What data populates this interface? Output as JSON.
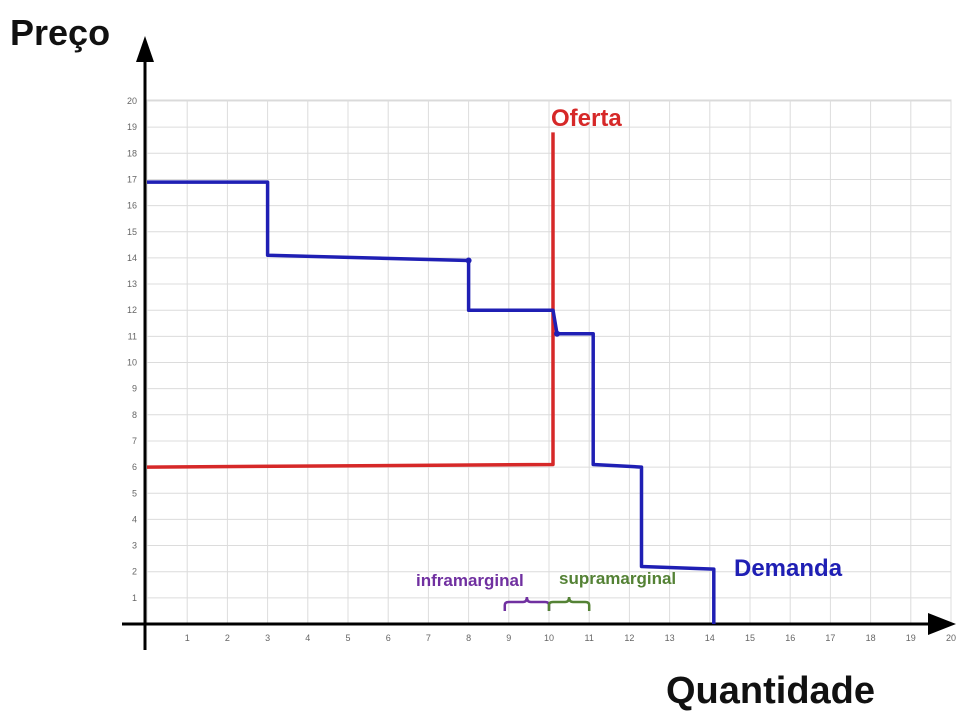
{
  "chart_data": {
    "type": "line",
    "xlabel": "Quantidade",
    "ylabel": "Preço",
    "xlim": [
      0,
      20
    ],
    "ylim": [
      0,
      20
    ],
    "x_ticks": [
      "1",
      "2",
      "3",
      "4",
      "5",
      "6",
      "7",
      "8",
      "9",
      "10",
      "11",
      "12",
      "13",
      "14",
      "15",
      "16",
      "17",
      "18",
      "19",
      "20"
    ],
    "y_ticks": [
      "1",
      "2",
      "3",
      "4",
      "5",
      "6",
      "7",
      "8",
      "9",
      "10",
      "11",
      "12",
      "13",
      "14",
      "15",
      "16",
      "17",
      "18",
      "19",
      "20"
    ],
    "grid": true,
    "series": [
      {
        "name": "Oferta",
        "color": "#d62828",
        "step": true,
        "points": [
          [
            0,
            6
          ],
          [
            10.1,
            6.1
          ],
          [
            10.1,
            18.8
          ]
        ]
      },
      {
        "name": "Demanda",
        "color": "#1f1fb4",
        "step": true,
        "points": [
          [
            0,
            16.9
          ],
          [
            3,
            16.9
          ],
          [
            3,
            14.1
          ],
          [
            8,
            13.9
          ],
          [
            8,
            12
          ],
          [
            10.1,
            12
          ],
          [
            10.2,
            11.1
          ],
          [
            11.1,
            11.1
          ],
          [
            11.1,
            6.1
          ],
          [
            12.3,
            6
          ],
          [
            12.3,
            2.2
          ],
          [
            14.1,
            2.1
          ],
          [
            14.1,
            0
          ]
        ]
      }
    ],
    "annotations": [
      {
        "text": "inframarginal",
        "color": "#7030a0",
        "x_range": [
          8.9,
          10
        ]
      },
      {
        "text": "supramarginal",
        "color": "#548235",
        "x_range": [
          10,
          11
        ]
      }
    ]
  }
}
